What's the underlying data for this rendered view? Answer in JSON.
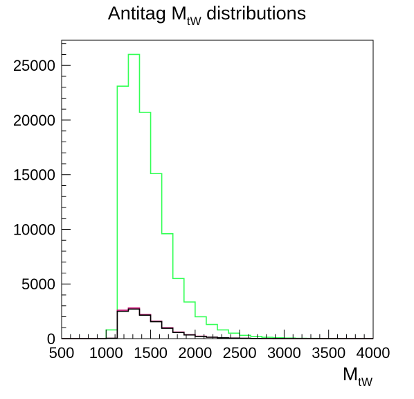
{
  "chart_data": {
    "type": "histogram",
    "title": {
      "main": "Antitag M",
      "subscript": "tW",
      "rest": " distributions"
    },
    "xlabel": {
      "main": "M",
      "subscript": "tW"
    },
    "ylabel": "",
    "xlim": [
      500,
      4000
    ],
    "ylim": [
      0,
      27300
    ],
    "bin_edges": [
      500,
      625,
      750,
      875,
      1000,
      1125,
      1250,
      1375,
      1500,
      1625,
      1750,
      1875,
      2000,
      2125,
      2250,
      2375,
      2500,
      2625,
      2750,
      2875,
      3000,
      3125,
      3250,
      3375,
      3500,
      3625,
      3750,
      3875,
      4000
    ],
    "x_ticks": [
      {
        "value": 500,
        "label": "500"
      },
      {
        "value": 1000,
        "label": "1000"
      },
      {
        "value": 1500,
        "label": "1500"
      },
      {
        "value": 2000,
        "label": "2000"
      },
      {
        "value": 2500,
        "label": "2500"
      },
      {
        "value": 3000,
        "label": "3000"
      },
      {
        "value": 3500,
        "label": "3500"
      },
      {
        "value": 4000,
        "label": "4000"
      }
    ],
    "y_ticks": [
      {
        "value": 0,
        "label": "0"
      },
      {
        "value": 5000,
        "label": "5000"
      },
      {
        "value": 10000,
        "label": "10000"
      },
      {
        "value": 15000,
        "label": "15000"
      },
      {
        "value": 20000,
        "label": "20000"
      },
      {
        "value": 25000,
        "label": "25000"
      }
    ],
    "grid": false,
    "series": [
      {
        "color": "#33ff55",
        "values": [
          0,
          0,
          0,
          0,
          800,
          23100,
          26000,
          20700,
          15100,
          9600,
          5500,
          3350,
          2000,
          1300,
          800,
          500,
          300,
          200,
          120,
          80,
          50,
          30,
          20,
          10,
          5,
          0,
          0,
          0
        ]
      },
      {
        "color": "#cc1177",
        "values": [
          0,
          0,
          0,
          0,
          30,
          2600,
          2800,
          2200,
          1600,
          1000,
          600,
          360,
          220,
          140,
          80,
          50,
          30,
          15,
          10,
          5,
          0,
          0,
          0,
          0,
          0,
          0,
          0,
          0
        ]
      },
      {
        "color": "#000000",
        "values": [
          0,
          0,
          0,
          0,
          25,
          2500,
          2700,
          2150,
          1550,
          950,
          560,
          340,
          200,
          130,
          75,
          45,
          25,
          12,
          8,
          4,
          0,
          0,
          0,
          0,
          0,
          0,
          0,
          0
        ]
      }
    ]
  }
}
